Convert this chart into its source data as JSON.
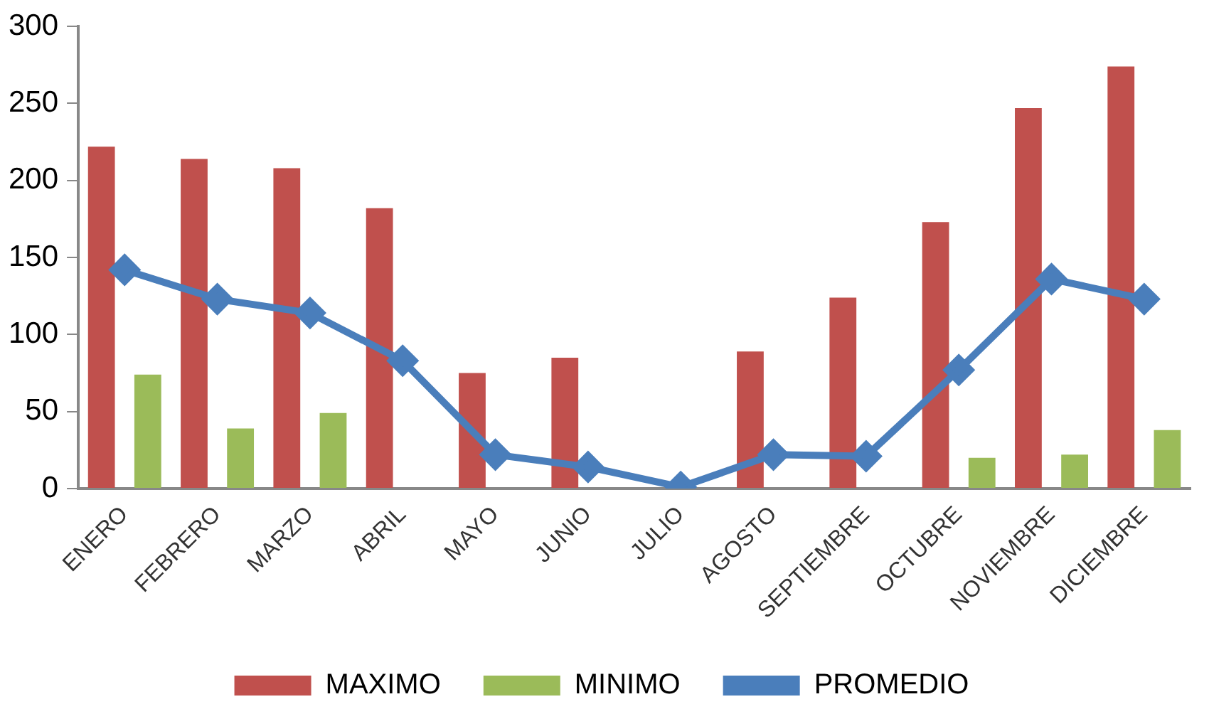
{
  "chart_data": {
    "type": "bar",
    "categories": [
      "ENERO",
      "FEBRERO",
      "MARZO",
      "ABRIL",
      "MAYO",
      "JUNIO",
      "JULIO",
      "AGOSTO",
      "SEPTIEMBRE",
      "OCTUBRE",
      "NOVIEMBRE",
      "DICIEMBRE"
    ],
    "series": [
      {
        "name": "MAXIMO",
        "color": "#c0504d",
        "values": [
          222,
          214,
          208,
          182,
          75,
          85,
          null,
          89,
          124,
          173,
          247,
          274
        ]
      },
      {
        "name": "MINIMO",
        "color": "#9bbb59",
        "values": [
          74,
          39,
          49,
          null,
          null,
          null,
          null,
          null,
          null,
          20,
          22,
          38
        ]
      },
      {
        "name": "PROMEDIO",
        "type": "line",
        "color": "#4a7ebb",
        "marker": "diamond",
        "values": [
          142,
          123,
          114,
          83,
          22,
          14,
          1,
          22,
          21,
          77,
          136,
          123
        ]
      }
    ],
    "ylim": [
      0,
      300
    ],
    "yticks": [
      0,
      50,
      100,
      150,
      200,
      250,
      300
    ],
    "grid": false,
    "legend": "bottom"
  }
}
